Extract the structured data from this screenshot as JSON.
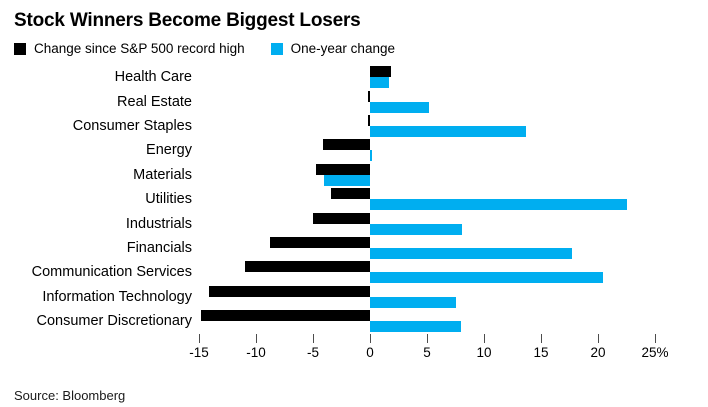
{
  "title": "Stock Winners Become Biggest Losers",
  "source": "Source: Bloomberg",
  "colors": {
    "series_black": "#000000",
    "series_blue": "#00aef0",
    "tick": "#4d4d4d",
    "background": "#ffffff"
  },
  "chart_data": {
    "type": "bar",
    "orientation": "horizontal",
    "title": "Stock Winners Become Biggest Losers",
    "xlabel": "",
    "ylabel": "",
    "xlim": [
      -15,
      25
    ],
    "xticks": [
      -15,
      -10,
      -5,
      0,
      5,
      10,
      15,
      20,
      25
    ],
    "xtick_labels": [
      "-15",
      "-10",
      "-5",
      "0",
      "5",
      "10",
      "15",
      "20",
      "25%"
    ],
    "unit": "%",
    "grid": false,
    "legend_position": "top",
    "categories": [
      "Health Care",
      "Real Estate",
      "Consumer Staples",
      "Energy",
      "Materials",
      "Utilities",
      "Industrials",
      "Financials",
      "Communication Services",
      "Information Technology",
      "Consumer Discretionary"
    ],
    "series": [
      {
        "name": "Change since S&P 500 record high",
        "color": "#000000",
        "values": [
          1.8,
          -0.2,
          -0.2,
          -4.1,
          -4.7,
          -3.4,
          -5.0,
          -8.8,
          -11.0,
          -14.1,
          -14.8
        ]
      },
      {
        "name": "One-year change",
        "color": "#00aef0",
        "values": [
          1.7,
          5.2,
          13.7,
          0.2,
          -4.0,
          22.5,
          8.1,
          17.7,
          20.4,
          7.5,
          8.0
        ]
      }
    ]
  }
}
